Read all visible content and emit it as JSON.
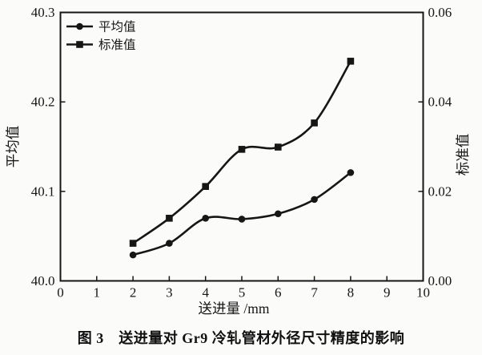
{
  "figure": {
    "caption": "图 3　送进量对 Gr9 冷轧管材外径尺寸精度的影响"
  },
  "chart_data": {
    "type": "line",
    "title": "",
    "xlabel": "送进量 /mm",
    "ylabel_left": "平均值",
    "ylabel_right": "标准值",
    "xlim": [
      0,
      10
    ],
    "xticks": [
      "0",
      "1",
      "2",
      "3",
      "4",
      "5",
      "6",
      "7",
      "8",
      "9",
      "10"
    ],
    "ylim_left": [
      40.0,
      40.3
    ],
    "yticks_left": [
      "40.0",
      "40.1",
      "40.2",
      "40.3"
    ],
    "ylim_right": [
      0.0,
      0.06
    ],
    "yticks_right": [
      "0.00",
      "0.02",
      "0.04",
      "0.06"
    ],
    "grid": false,
    "legend_position": "top-left",
    "line_color": "#161616",
    "background": "#fbfbf9",
    "x": [
      2,
      3,
      4,
      5,
      6,
      7,
      8
    ],
    "series": [
      {
        "name": "平均值",
        "axis": "left",
        "marker": "circle",
        "values": [
          40.029,
          40.042,
          40.07,
          40.069,
          40.075,
          40.091,
          40.121
        ]
      },
      {
        "name": "标准值",
        "axis": "right",
        "marker": "square",
        "values": [
          0.0084,
          0.014,
          0.0211,
          0.0294,
          0.0299,
          0.0353,
          0.0491
        ]
      }
    ]
  }
}
